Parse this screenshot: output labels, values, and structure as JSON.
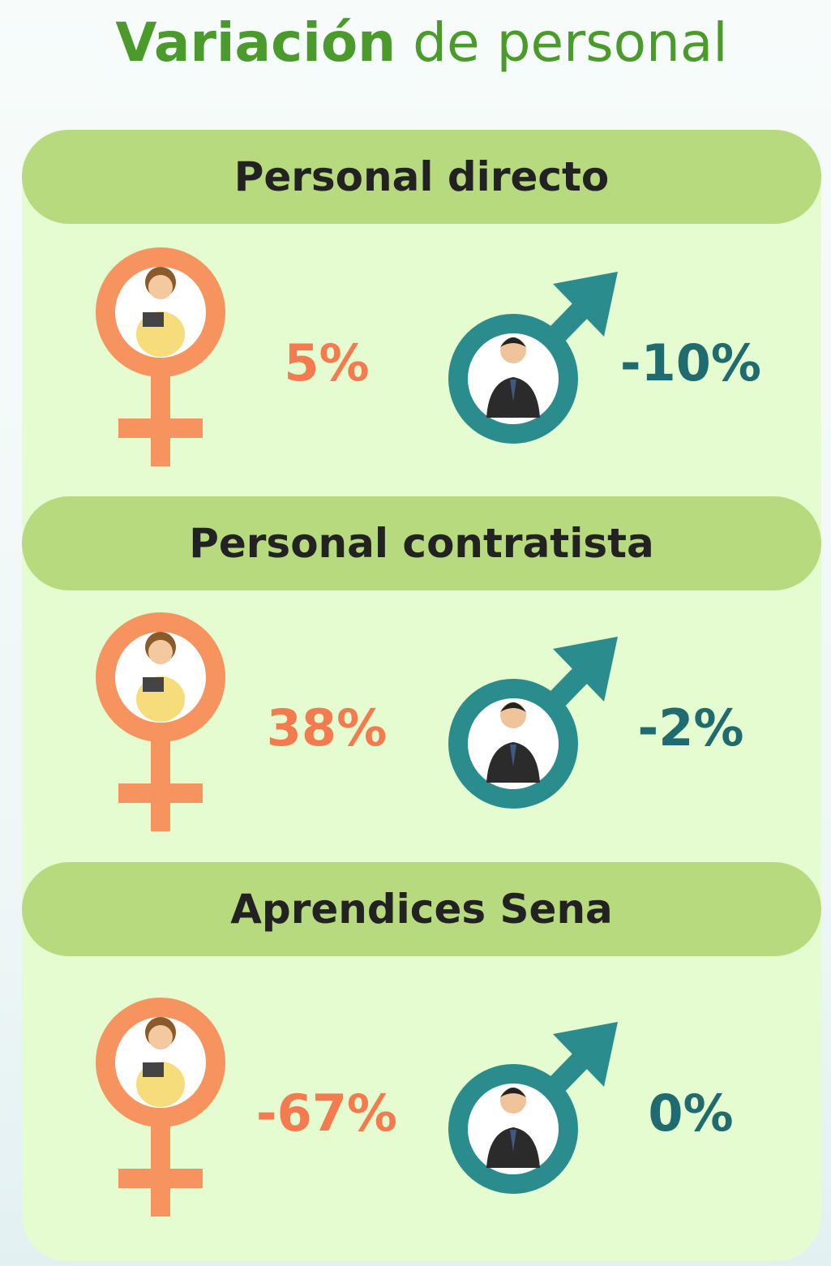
{
  "title": {
    "bold": "Variación",
    "rest": "de personal"
  },
  "sections": [
    {
      "label": "Personal directo",
      "women": "5%",
      "men": "-10%"
    },
    {
      "label": "Personal contratista",
      "women": "38%",
      "men": "-2%"
    },
    {
      "label": "Aprendices Sena",
      "women": "-67%",
      "men": "0%"
    }
  ]
}
